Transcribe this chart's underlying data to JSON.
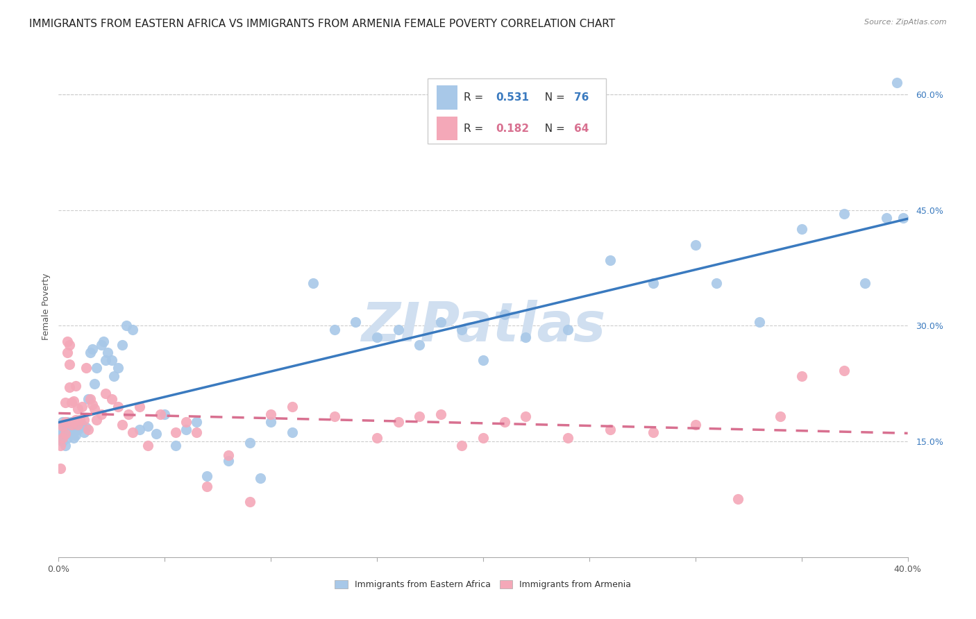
{
  "title": "IMMIGRANTS FROM EASTERN AFRICA VS IMMIGRANTS FROM ARMENIA FEMALE POVERTY CORRELATION CHART",
  "source": "Source: ZipAtlas.com",
  "ylabel": "Female Poverty",
  "right_yticks": [
    "15.0%",
    "30.0%",
    "45.0%",
    "60.0%"
  ],
  "right_ytick_values": [
    0.15,
    0.3,
    0.45,
    0.6
  ],
  "xlim": [
    0.0,
    0.4
  ],
  "ylim": [
    0.0,
    0.65
  ],
  "series1_color": "#a8c8e8",
  "series2_color": "#f4a8b8",
  "series1_line_color": "#3a7abf",
  "series2_line_color": "#d87090",
  "legend_label1": "Immigrants from Eastern Africa",
  "legend_label2": "Immigrants from Armenia",
  "watermark": "ZIPatlas",
  "watermark_color": "#d0dff0",
  "title_fontsize": 11,
  "axis_label_fontsize": 9,
  "tick_fontsize": 9,
  "series1_x": [
    0.001,
    0.001,
    0.002,
    0.002,
    0.002,
    0.003,
    0.003,
    0.003,
    0.004,
    0.004,
    0.004,
    0.005,
    0.005,
    0.006,
    0.006,
    0.007,
    0.007,
    0.008,
    0.008,
    0.009,
    0.01,
    0.01,
    0.011,
    0.012,
    0.013,
    0.014,
    0.015,
    0.016,
    0.017,
    0.018,
    0.02,
    0.021,
    0.022,
    0.023,
    0.025,
    0.026,
    0.028,
    0.03,
    0.032,
    0.035,
    0.038,
    0.042,
    0.046,
    0.05,
    0.055,
    0.06,
    0.065,
    0.07,
    0.08,
    0.09,
    0.095,
    0.1,
    0.11,
    0.12,
    0.13,
    0.14,
    0.15,
    0.16,
    0.17,
    0.18,
    0.19,
    0.2,
    0.21,
    0.22,
    0.24,
    0.26,
    0.28,
    0.3,
    0.31,
    0.33,
    0.35,
    0.37,
    0.38,
    0.39,
    0.395,
    0.398
  ],
  "series1_y": [
    0.165,
    0.155,
    0.175,
    0.16,
    0.15,
    0.17,
    0.16,
    0.145,
    0.175,
    0.165,
    0.155,
    0.17,
    0.16,
    0.175,
    0.165,
    0.155,
    0.168,
    0.172,
    0.158,
    0.165,
    0.168,
    0.178,
    0.172,
    0.162,
    0.168,
    0.205,
    0.265,
    0.27,
    0.225,
    0.245,
    0.275,
    0.28,
    0.255,
    0.265,
    0.255,
    0.235,
    0.245,
    0.275,
    0.3,
    0.295,
    0.165,
    0.17,
    0.16,
    0.185,
    0.145,
    0.165,
    0.175,
    0.105,
    0.125,
    0.148,
    0.102,
    0.175,
    0.162,
    0.355,
    0.295,
    0.305,
    0.285,
    0.295,
    0.275,
    0.305,
    0.295,
    0.255,
    0.315,
    0.285,
    0.295,
    0.385,
    0.355,
    0.405,
    0.355,
    0.305,
    0.425,
    0.445,
    0.355,
    0.44,
    0.615,
    0.44
  ],
  "series2_x": [
    0.001,
    0.001,
    0.002,
    0.002,
    0.003,
    0.003,
    0.003,
    0.004,
    0.004,
    0.005,
    0.005,
    0.005,
    0.006,
    0.006,
    0.007,
    0.007,
    0.008,
    0.008,
    0.009,
    0.009,
    0.01,
    0.011,
    0.012,
    0.013,
    0.014,
    0.015,
    0.016,
    0.017,
    0.018,
    0.02,
    0.022,
    0.025,
    0.028,
    0.03,
    0.033,
    0.035,
    0.038,
    0.042,
    0.048,
    0.055,
    0.06,
    0.065,
    0.07,
    0.08,
    0.09,
    0.1,
    0.11,
    0.13,
    0.15,
    0.16,
    0.17,
    0.18,
    0.19,
    0.2,
    0.21,
    0.22,
    0.24,
    0.26,
    0.28,
    0.3,
    0.32,
    0.34,
    0.35,
    0.37
  ],
  "series2_y": [
    0.115,
    0.145,
    0.17,
    0.155,
    0.16,
    0.175,
    0.2,
    0.28,
    0.265,
    0.275,
    0.22,
    0.25,
    0.2,
    0.172,
    0.175,
    0.202,
    0.178,
    0.222,
    0.172,
    0.192,
    0.178,
    0.195,
    0.178,
    0.245,
    0.165,
    0.205,
    0.198,
    0.192,
    0.178,
    0.185,
    0.212,
    0.205,
    0.195,
    0.172,
    0.185,
    0.162,
    0.195,
    0.145,
    0.185,
    0.162,
    0.175,
    0.162,
    0.092,
    0.132,
    0.072,
    0.185,
    0.195,
    0.182,
    0.155,
    0.175,
    0.182,
    0.185,
    0.145,
    0.155,
    0.175,
    0.182,
    0.155,
    0.165,
    0.162,
    0.172,
    0.075,
    0.182,
    0.235,
    0.242
  ]
}
